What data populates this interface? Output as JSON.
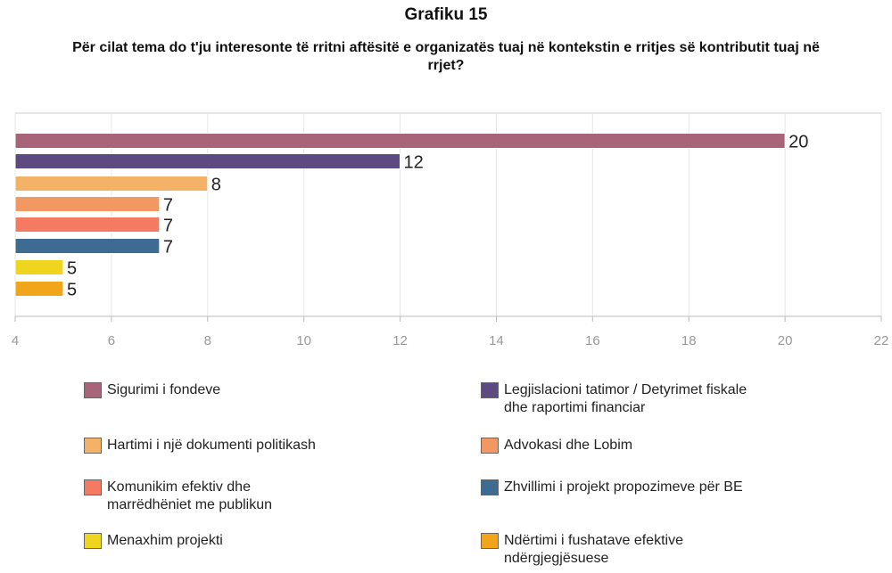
{
  "chart_data": {
    "type": "hbar",
    "title": "Grafiku 15",
    "subtitle": "Për cilat tema do t'ju interesonte të rritni aftësitë e organizatës tuaj në kontekstin e rritjes së kontributit tuaj në rrjet?",
    "categories": [
      "Sigurimi i fondeve",
      "Legjislacioni tatimor / Detyrimet fiskale dhe raportimi financiar",
      "Hartimi i një dokumenti politikash",
      "Advokasi dhe Lobim",
      "Komunikim efektiv dhe marrëdhëniet me publikun",
      "Zhvillimi i projekt propozimeve për BE",
      "Menaxhim projekti",
      "Ndërtimi i fushatave efektive ndërgjegjësuese"
    ],
    "values": [
      20,
      12,
      8,
      7,
      7,
      7,
      5,
      5
    ],
    "colors": [
      "#a8657a",
      "#5c4a80",
      "#f4b266",
      "#f29963",
      "#f47a62",
      "#3e6b91",
      "#f0d51f",
      "#f0a51a"
    ],
    "xlim": [
      4,
      22
    ],
    "xticks": [
      4,
      6,
      8,
      10,
      12,
      14,
      16,
      18,
      20,
      22
    ],
    "grid": true
  }
}
